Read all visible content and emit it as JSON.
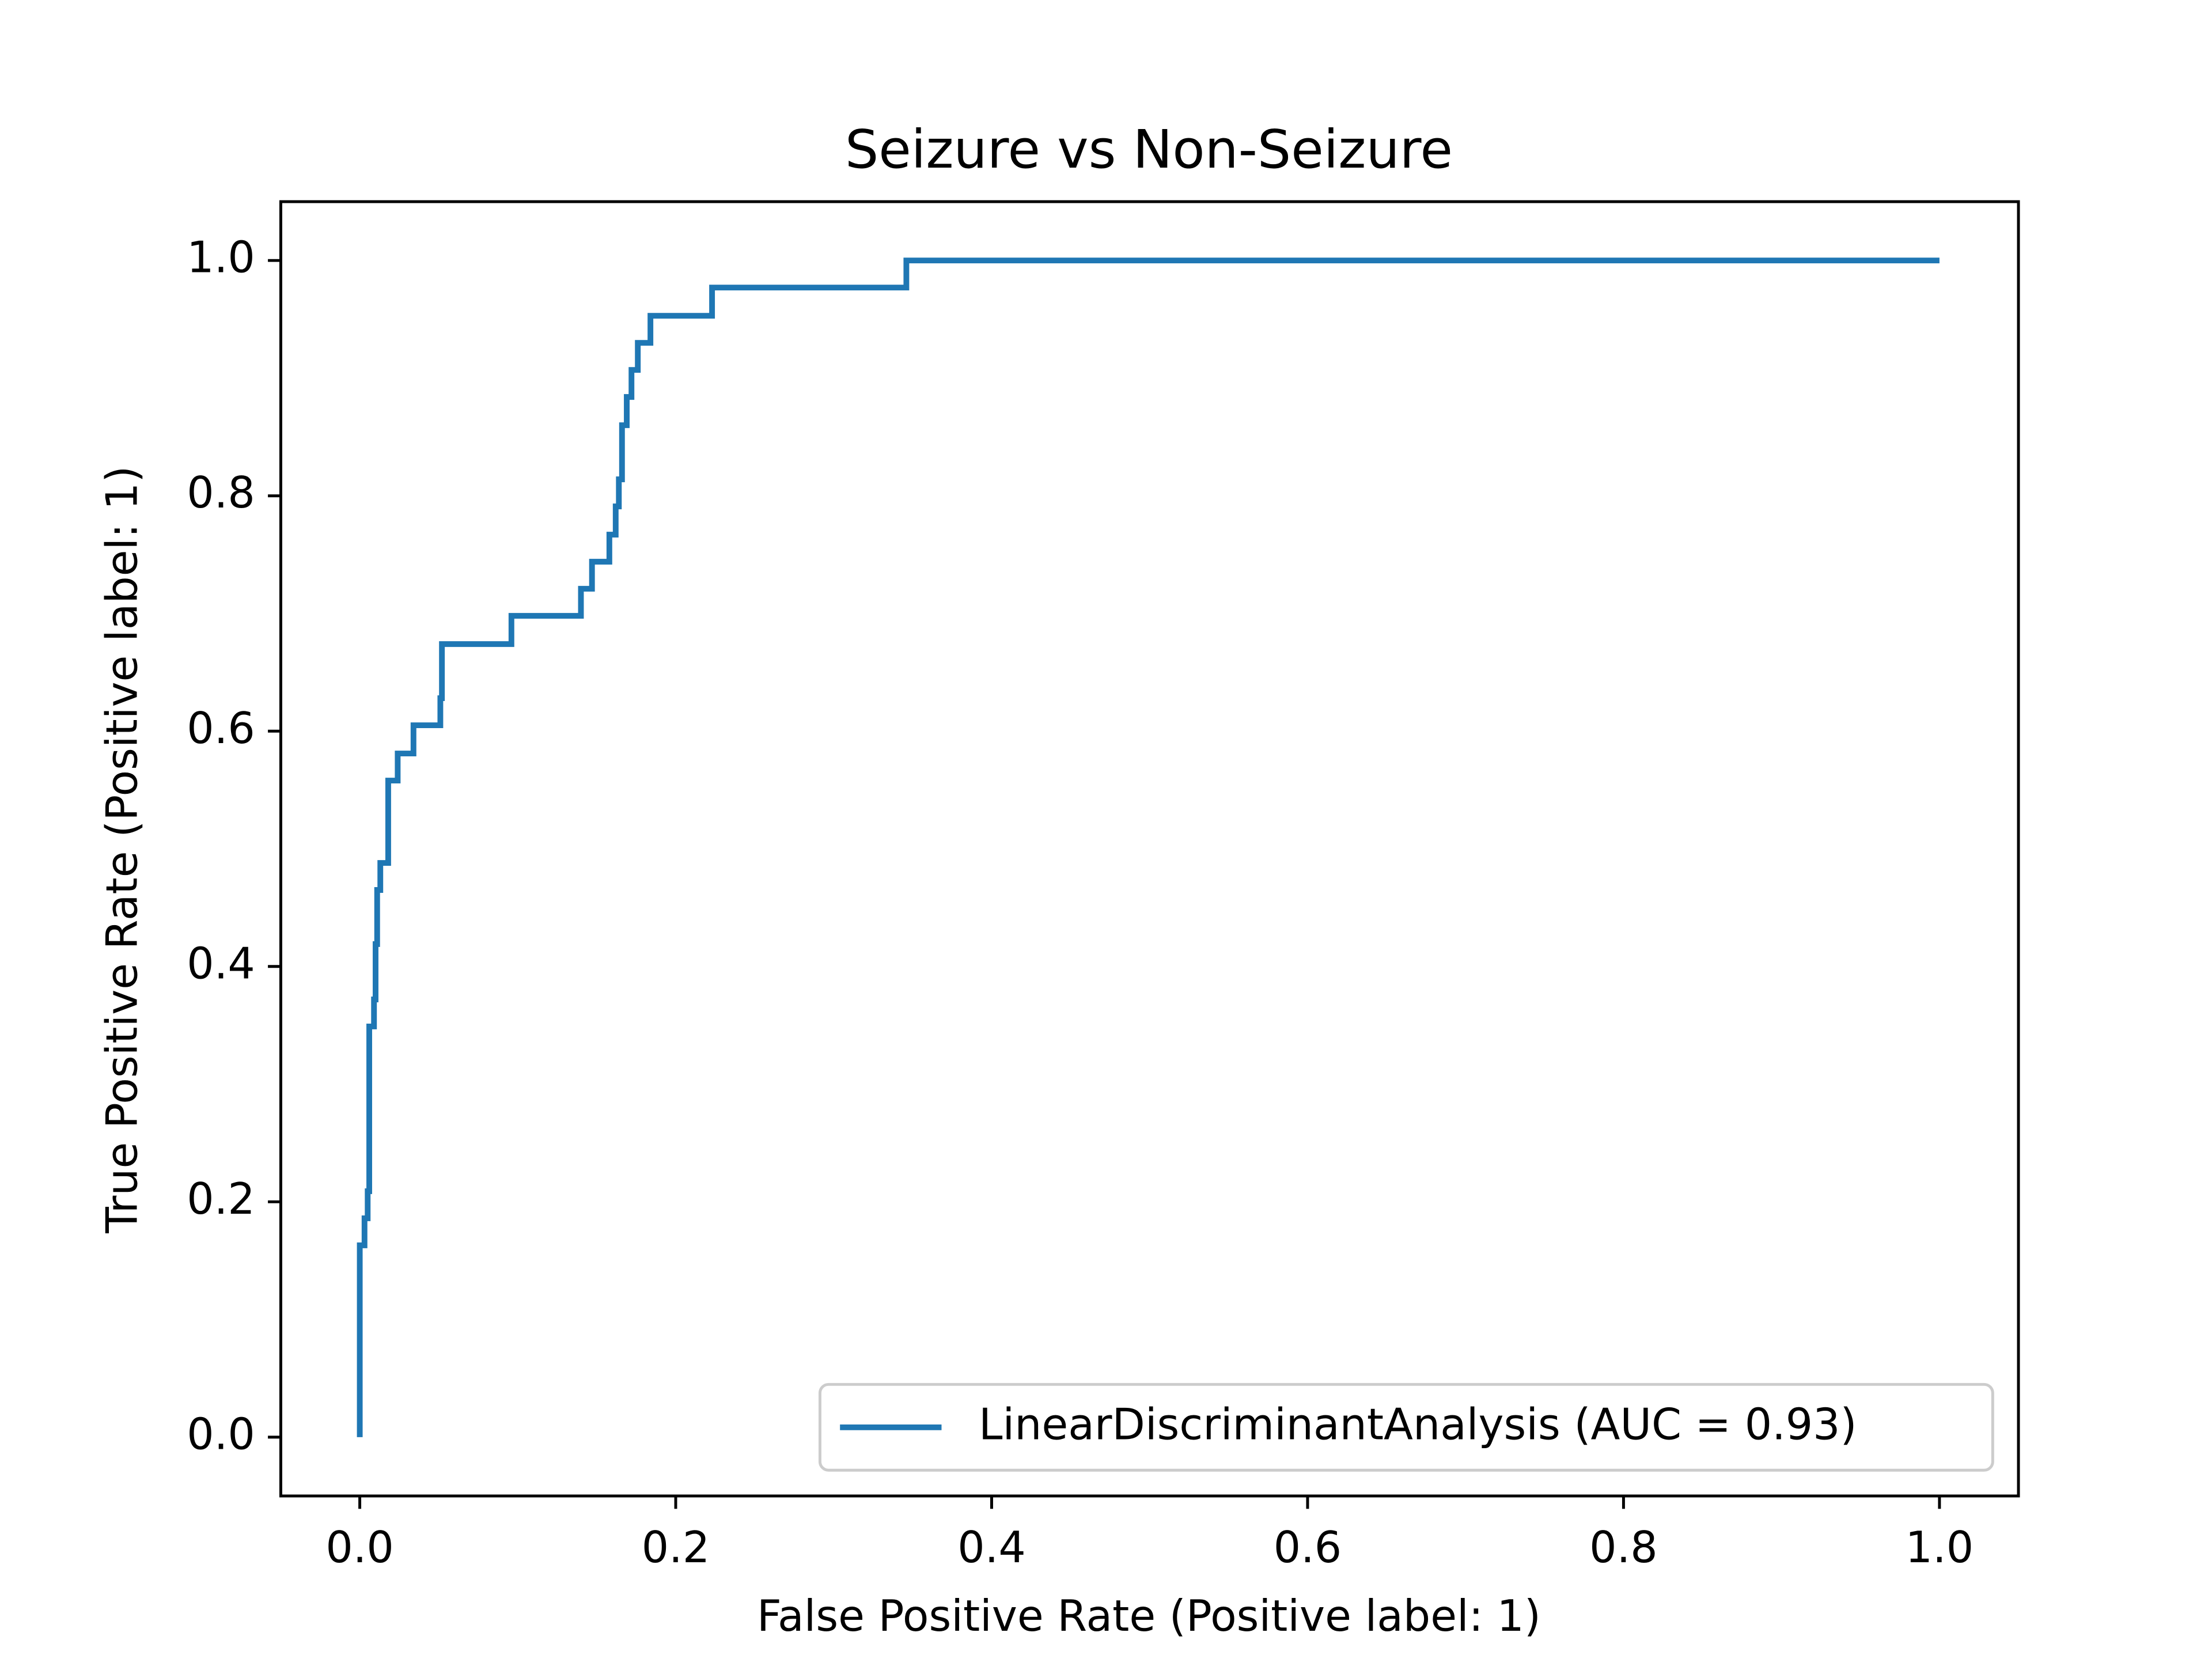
{
  "chart_data": {
    "type": "line",
    "title": "Seizure vs Non-Seizure",
    "x_label": "False Positive Rate (Positive label: 1)",
    "y_label": "True Positive Rate (Positive label: 1)",
    "x": [
      0,
      0,
      0.003,
      0.003,
      0.005,
      0.005,
      0.006,
      0.006,
      0.009,
      0.009,
      0.01,
      0.01,
      0.011,
      0.011,
      0.013,
      0.013,
      0.018,
      0.018,
      0.024,
      0.024,
      0.034,
      0.034,
      0.051,
      0.051,
      0.052,
      0.052,
      0.096,
      0.096,
      0.14,
      0.14,
      0.147,
      0.147,
      0.158,
      0.158,
      0.162,
      0.162,
      0.164,
      0.164,
      0.166,
      0.166,
      0.169,
      0.169,
      0.172,
      0.172,
      0.176,
      0.176,
      0.184,
      0.184,
      0.223,
      0.223,
      0.346,
      0.346,
      1
    ],
    "series": [
      {
        "name": "LinearDiscriminantAnalysis (AUC = 0.93)",
        "color": "#1f77b4",
        "values": [
          0,
          0.163,
          0.163,
          0.186,
          0.186,
          0.209,
          0.209,
          0.349,
          0.349,
          0.372,
          0.372,
          0.419,
          0.419,
          0.465,
          0.465,
          0.488,
          0.488,
          0.558,
          0.558,
          0.581,
          0.581,
          0.605,
          0.605,
          0.628,
          0.628,
          0.674,
          0.674,
          0.698,
          0.698,
          0.721,
          0.721,
          0.744,
          0.744,
          0.767,
          0.767,
          0.791,
          0.791,
          0.814,
          0.814,
          0.86,
          0.86,
          0.884,
          0.884,
          0.907,
          0.907,
          0.93,
          0.93,
          0.953,
          0.953,
          0.977,
          0.977,
          1,
          1
        ]
      }
    ],
    "xlim": [
      -0.05,
      1.05
    ],
    "ylim": [
      -0.05,
      1.05
    ],
    "xticks": [
      {
        "value": 0,
        "label": "0.0"
      },
      0.2,
      0.4,
      0.6,
      0.8,
      {
        "value": 1,
        "label": "1.0"
      }
    ],
    "yticks": [
      {
        "value": 0,
        "label": "0.0"
      },
      0.2,
      0.4,
      0.6,
      0.8,
      {
        "value": 1,
        "label": "1.0"
      }
    ],
    "grid": false,
    "legend": "lower right"
  }
}
